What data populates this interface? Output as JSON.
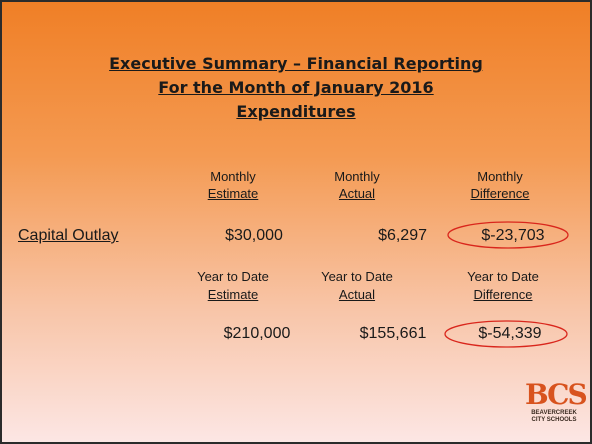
{
  "title": {
    "line1": "Executive Summary – Financial Reporting",
    "line2": "For the Month of January 2016",
    "line3": "Expenditures"
  },
  "monthly": {
    "headers": [
      [
        "Monthly",
        "Estimate"
      ],
      [
        "Monthly",
        "Actual"
      ],
      [
        "Monthly",
        "Difference"
      ]
    ],
    "row_label": "Capital Outlay",
    "values": [
      "$30,000",
      "$6,297",
      "$-23,703"
    ]
  },
  "ytd": {
    "headers": [
      [
        "Year to Date",
        "Estimate"
      ],
      [
        "Year to Date",
        "Actual"
      ],
      [
        "Year to Date",
        "Difference"
      ]
    ],
    "values": [
      "$210,000",
      "$155,661",
      "$-54,339"
    ]
  },
  "logo": {
    "letters": "BCS",
    "line1": "BEAVERCREEK",
    "line2": "CITY SCHOOLS"
  }
}
